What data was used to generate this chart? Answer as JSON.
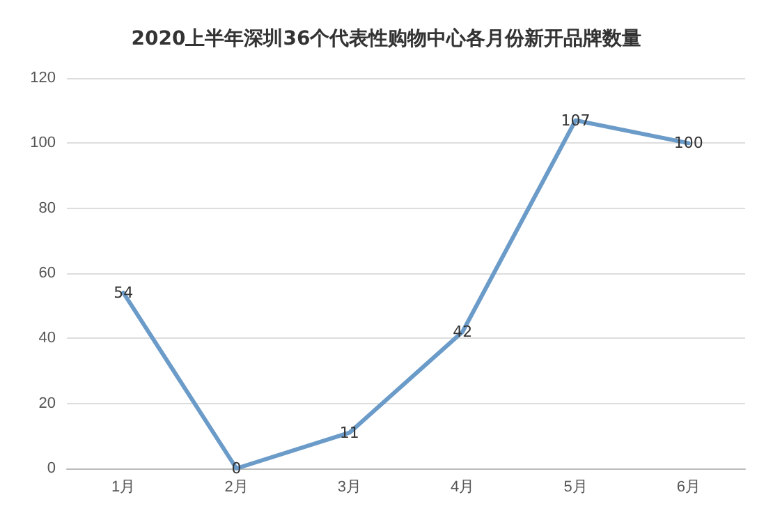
{
  "chart_data": {
    "type": "line",
    "title": "2020上半年深圳36个代表性购物中心各月份新开品牌数量",
    "categories": [
      "1月",
      "2月",
      "3月",
      "4月",
      "5月",
      "6月"
    ],
    "series": [
      {
        "color": "#6b9bc8",
        "values": [
          54,
          0,
          11,
          42,
          107,
          100
        ]
      }
    ],
    "ylim": [
      0,
      120
    ],
    "yticks": [
      0,
      20,
      40,
      60,
      80,
      100,
      120
    ],
    "grid": "y",
    "data_labels": true,
    "marker": "none",
    "line_style": "solid"
  }
}
